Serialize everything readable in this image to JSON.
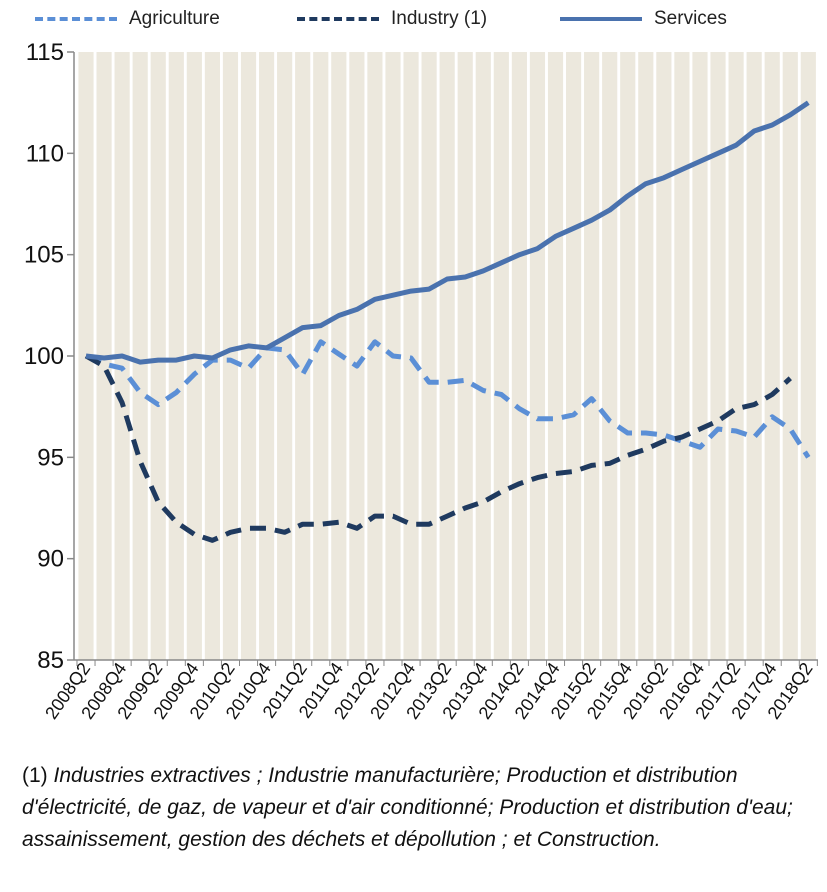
{
  "chart_data": {
    "type": "line",
    "ylim": [
      85,
      115
    ],
    "yticks": [
      85,
      90,
      95,
      100,
      105,
      110,
      115
    ],
    "x": [
      "2008Q2",
      "2008Q3",
      "2008Q4",
      "2009Q1",
      "2009Q2",
      "2009Q3",
      "2009Q4",
      "2010Q1",
      "2010Q2",
      "2010Q3",
      "2010Q4",
      "2011Q1",
      "2011Q2",
      "2011Q3",
      "2011Q4",
      "2012Q1",
      "2012Q2",
      "2012Q3",
      "2012Q4",
      "2013Q1",
      "2013Q2",
      "2013Q3",
      "2013Q4",
      "2014Q1",
      "2014Q2",
      "2014Q3",
      "2014Q4",
      "2015Q1",
      "2015Q2",
      "2015Q3",
      "2015Q4",
      "2016Q1",
      "2016Q2",
      "2016Q3",
      "2016Q4",
      "2017Q1",
      "2017Q2",
      "2017Q3",
      "2017Q4",
      "2018Q1",
      "2018Q2"
    ],
    "xtick_labels": [
      "2008Q2",
      "2008Q4",
      "2009Q2",
      "2009Q4",
      "2010Q2",
      "2010Q4",
      "2011Q2",
      "2011Q4",
      "2012Q2",
      "2012Q4",
      "2013Q2",
      "2013Q4",
      "2014Q2",
      "2014Q4",
      "2015Q2",
      "2015Q4",
      "2016Q2",
      "2016Q4",
      "2017Q2",
      "2017Q4",
      "2018Q2"
    ],
    "grid": "vertical bands",
    "legend_position": "top",
    "series": [
      {
        "name": "Agriculture",
        "color": "#5b8fd6",
        "style": "dashed",
        "values": [
          100.0,
          99.6,
          99.4,
          98.2,
          97.6,
          98.2,
          99.1,
          99.8,
          99.8,
          99.4,
          100.4,
          100.3,
          99.1,
          100.7,
          100.1,
          99.5,
          100.7,
          100.0,
          99.9,
          98.7,
          98.7,
          98.8,
          98.3,
          98.1,
          97.4,
          96.9,
          96.9,
          97.1,
          97.9,
          96.8,
          96.2,
          96.2,
          96.1,
          95.8,
          95.5,
          96.4,
          96.3,
          96.0,
          97.0,
          96.4,
          95.0
        ]
      },
      {
        "name": "Industry (1)",
        "color": "#1f3a5f",
        "style": "dashed",
        "values": [
          100.0,
          99.5,
          97.7,
          94.8,
          92.8,
          91.8,
          91.2,
          90.9,
          91.3,
          91.5,
          91.5,
          91.3,
          91.7,
          91.7,
          91.8,
          91.5,
          92.1,
          92.1,
          91.7,
          91.7,
          92.1,
          92.5,
          92.8,
          93.3,
          93.7,
          94.0,
          94.2,
          94.3,
          94.6,
          94.7,
          95.1,
          95.4,
          95.8,
          96.0,
          96.4,
          96.8,
          97.4,
          97.6,
          98.1,
          98.9,
          null
        ]
      },
      {
        "name": "Services",
        "color": "#4a72ae",
        "style": "solid",
        "values": [
          100.0,
          99.9,
          100.0,
          99.7,
          99.8,
          99.8,
          100.0,
          99.9,
          100.3,
          100.5,
          100.4,
          100.9,
          101.4,
          101.5,
          102.0,
          102.3,
          102.8,
          103.0,
          103.2,
          103.3,
          103.8,
          103.9,
          104.2,
          104.6,
          105.0,
          105.3,
          105.9,
          106.3,
          106.7,
          107.2,
          107.9,
          108.5,
          108.8,
          109.2,
          109.6,
          110.0,
          110.4,
          111.1,
          111.4,
          111.9,
          112.5
        ]
      }
    ]
  },
  "footnote": {
    "number": "(1)",
    "text": "Industries extractives ; Industrie manufacturière;  Production et distribution d'électricité, de gaz, de vapeur et d'air conditionné; Production et distribution d'eau; assainissement, gestion des déchets et dépollution ; et Construction."
  }
}
